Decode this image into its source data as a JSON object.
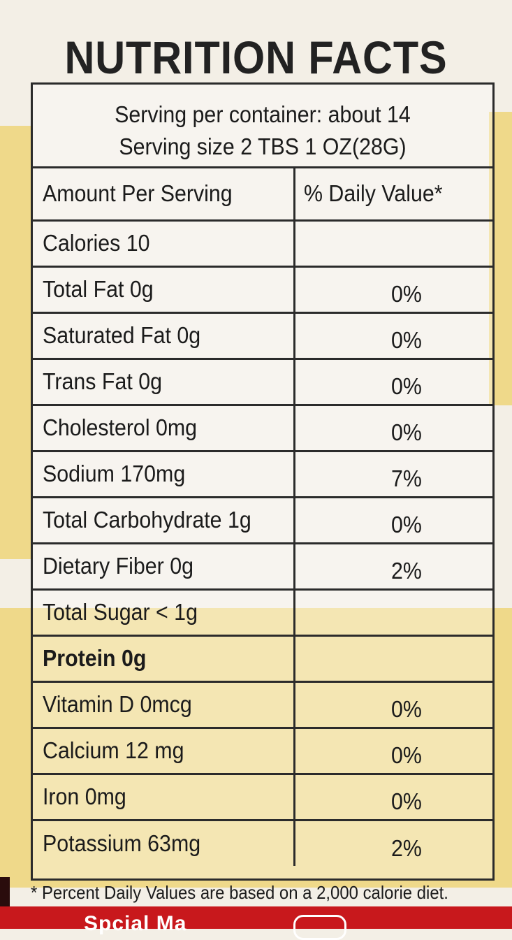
{
  "label": {
    "title": "NUTRITION FACTS",
    "servings_per_container": "Serving per container: about 14",
    "serving_size": "Serving size 2 TBS 1 OZ(28G)",
    "header_left": "Amount Per Serving",
    "header_right": "% Daily Value*",
    "rows": [
      {
        "name": "Calories 10",
        "dv": ""
      },
      {
        "name": "Total Fat 0g",
        "dv": "0%"
      },
      {
        "name": "Saturated Fat 0g",
        "dv": "0%"
      },
      {
        "name": "Trans Fat 0g",
        "dv": "0%"
      },
      {
        "name": "Cholesterol 0mg",
        "dv": "0%"
      },
      {
        "name": "Sodium 170mg",
        "dv": "7%"
      },
      {
        "name": "Total Carbohydrate 1g",
        "dv": "0%"
      },
      {
        "name": "Dietary Fiber 0g",
        "dv": "2%"
      },
      {
        "name": "Total Sugar < 1g",
        "dv": ""
      },
      {
        "name": "Protein 0g",
        "dv": ""
      },
      {
        "name": "Vitamin D 0mcg",
        "dv": "0%"
      },
      {
        "name": "Calcium 12 mg",
        "dv": "0%"
      },
      {
        "name": "Iron 0mg",
        "dv": "0%"
      },
      {
        "name": "Potassium 63mg",
        "dv": "2%"
      }
    ],
    "footnote": "* Percent Daily Values are based on a 2,000 calorie diet."
  },
  "package": {
    "bottom_text_partial": "Spcial Ma",
    "colors": {
      "stripe": "#efd98a",
      "band": "#c8181c",
      "ink": "#1b1b1b"
    }
  }
}
